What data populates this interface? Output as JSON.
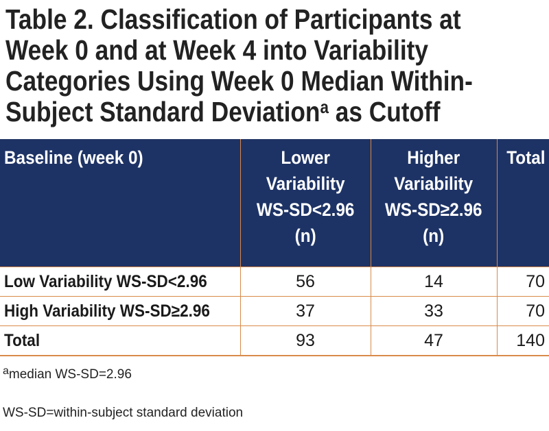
{
  "title": {
    "line1": "Table 2. Classification of Participants at",
    "line2": "Week 0 and at Week 4 into Variability",
    "line3": "Categories Using Week 0 Median Within-",
    "line4_main": "Subject Standard Deviation",
    "line4_sup": "a",
    "line4_end": " as Cutoff"
  },
  "table": {
    "headers": {
      "baseline": "Baseline (week 0)",
      "lower": [
        "Lower",
        "Variability",
        "WS-SD<2.96",
        "(n)"
      ],
      "higher": [
        "Higher",
        "Variability",
        "WS-SD≥2.96",
        "(n)"
      ],
      "total": "Total"
    },
    "rows": [
      {
        "label": "Low Variability WS-SD<2.96",
        "lower": "56",
        "higher": "14",
        "total": "70"
      },
      {
        "label": "High Variability WS-SD≥2.96",
        "lower": "37",
        "higher": "33",
        "total": "70"
      },
      {
        "label": "Total",
        "lower": "93",
        "higher": "47",
        "total": "140"
      }
    ]
  },
  "footnotes": {
    "note_a_sup": "a",
    "note_a_text": "median WS-SD=2.96",
    "abbrev": "WS-SD=within-subject standard deviation"
  },
  "colors": {
    "header_bg": "#1e3365",
    "rule": "#d98a4a"
  }
}
